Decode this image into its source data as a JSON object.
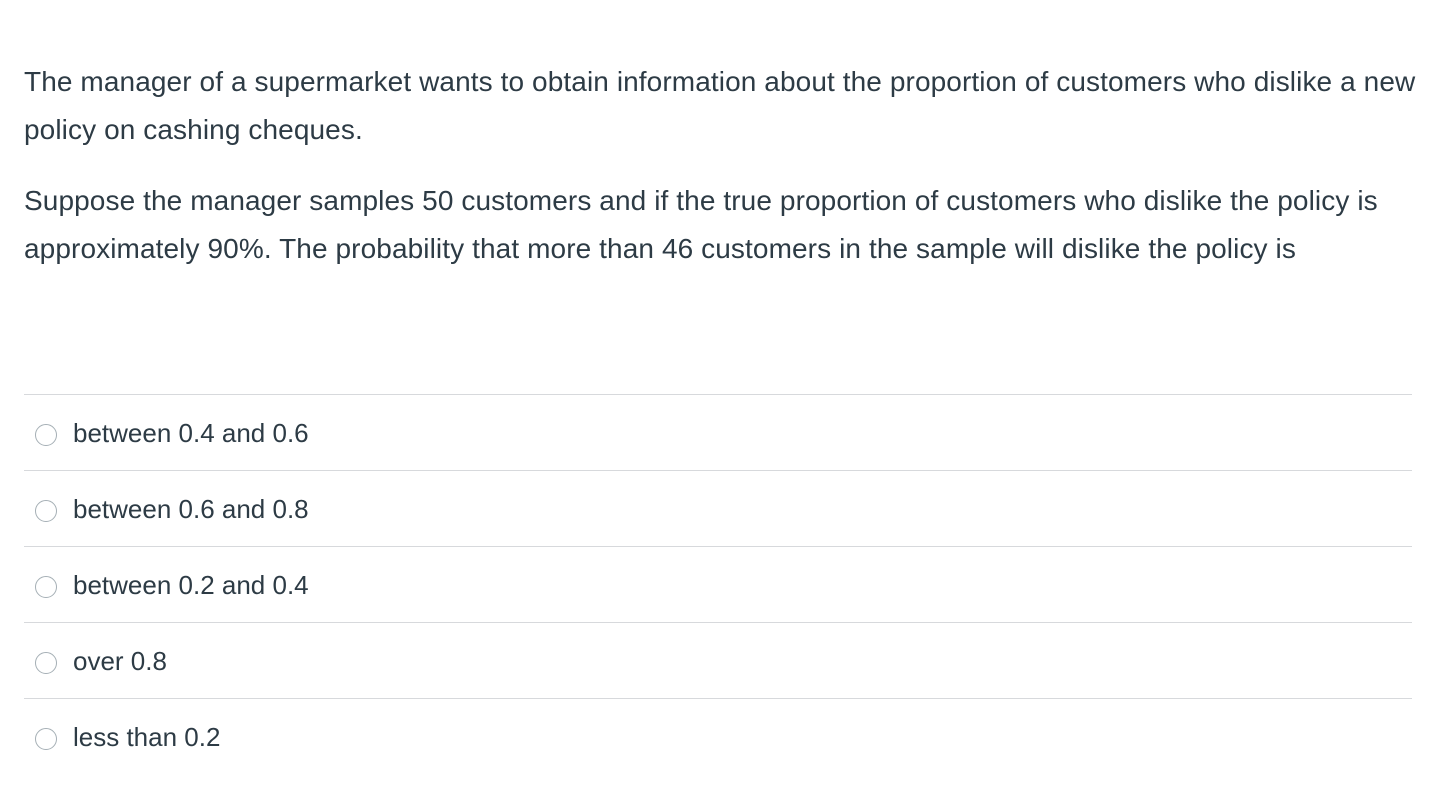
{
  "question": {
    "paragraphs": [
      "The manager of a supermarket wants to obtain information about the proportion of customers who dislike a new policy on cashing cheques.",
      "Suppose the manager samples 50 customers and if the true proportion of customers who dislike the policy is approximately 90%.  The probability that more than 46 customers in the sample will dislike the policy is"
    ]
  },
  "answers": [
    {
      "label": "between 0.4 and 0.6",
      "selected": false
    },
    {
      "label": "between 0.6 and 0.8",
      "selected": false
    },
    {
      "label": "between 0.2 and 0.4",
      "selected": false
    },
    {
      "label": "over 0.8",
      "selected": false
    },
    {
      "label": "less than 0.2",
      "selected": false
    }
  ]
}
